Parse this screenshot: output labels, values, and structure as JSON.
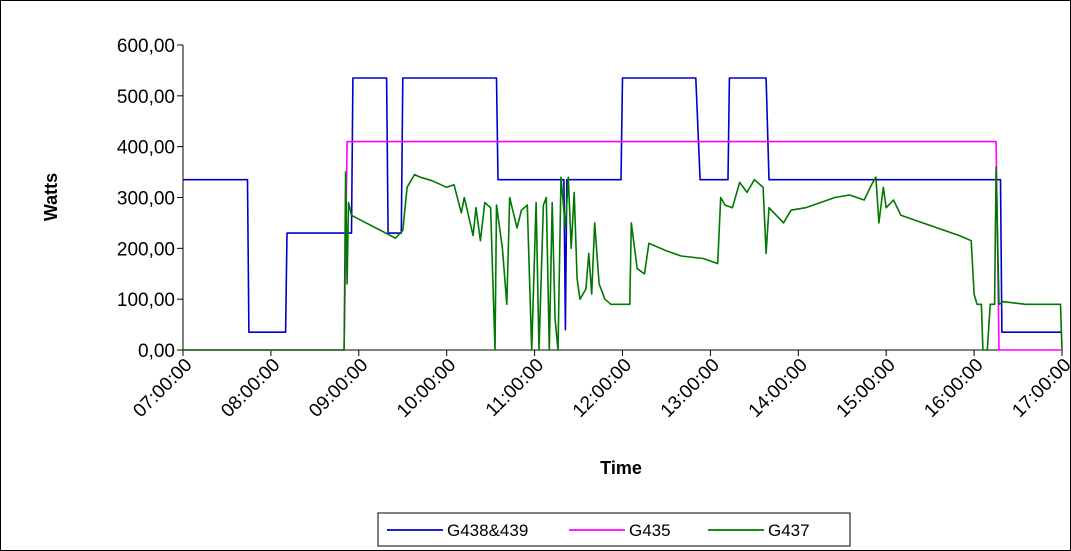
{
  "chart_data": {
    "type": "line",
    "title": "",
    "xlabel": "Time",
    "ylabel": "Watts",
    "x_ticks": [
      "07:00:00",
      "08:00:00",
      "09:00:00",
      "10:00:00",
      "11:00:00",
      "12:00:00",
      "13:00:00",
      "14:00:00",
      "15:00:00",
      "16:00:00",
      "17:00:00"
    ],
    "y_ticks": [
      "0,00",
      "100,00",
      "200,00",
      "300,00",
      "400,00",
      "500,00",
      "600,00"
    ],
    "xlim": [
      "07:00",
      "17:00"
    ],
    "ylim": [
      0,
      600
    ],
    "grid": false,
    "legend_position": "bottom",
    "series": [
      {
        "name": "G438&439",
        "color": "#0000cc",
        "points": [
          [
            "07:00",
            335
          ],
          [
            "07:44",
            335
          ],
          [
            "07:45",
            35
          ],
          [
            "08:10",
            35
          ],
          [
            "08:11",
            230
          ],
          [
            "08:55",
            230
          ],
          [
            "08:56",
            535
          ],
          [
            "09:19",
            535
          ],
          [
            "09:20",
            230
          ],
          [
            "09:29",
            230
          ],
          [
            "09:30",
            535
          ],
          [
            "10:34",
            535
          ],
          [
            "10:35",
            335
          ],
          [
            "11:20",
            335
          ],
          [
            "11:21",
            40
          ],
          [
            "11:22",
            335
          ],
          [
            "11:59",
            335
          ],
          [
            "12:00",
            535
          ],
          [
            "12:50",
            535
          ],
          [
            "12:53",
            335
          ],
          [
            "13:12",
            335
          ],
          [
            "13:13",
            535
          ],
          [
            "13:38",
            535
          ],
          [
            "13:40",
            335
          ],
          [
            "16:18",
            335
          ],
          [
            "16:19",
            35
          ],
          [
            "17:00",
            35
          ]
        ]
      },
      {
        "name": "G435",
        "color": "#ff00ff",
        "points": [
          [
            "07:00",
            0
          ],
          [
            "08:50",
            0
          ],
          [
            "08:52",
            410
          ],
          [
            "16:15",
            410
          ],
          [
            "16:17",
            0
          ],
          [
            "17:00",
            0
          ]
        ]
      },
      {
        "name": "G437",
        "color": "#007700",
        "points": [
          [
            "07:00",
            0
          ],
          [
            "08:50",
            0
          ],
          [
            "08:51",
            350
          ],
          [
            "08:52",
            130
          ],
          [
            "08:53",
            290
          ],
          [
            "08:55",
            265
          ],
          [
            "09:05",
            250
          ],
          [
            "09:15",
            235
          ],
          [
            "09:25",
            220
          ],
          [
            "09:30",
            235
          ],
          [
            "09:33",
            320
          ],
          [
            "09:38",
            345
          ],
          [
            "09:42",
            340
          ],
          [
            "09:50",
            333
          ],
          [
            "10:00",
            320
          ],
          [
            "10:05",
            325
          ],
          [
            "10:10",
            270
          ],
          [
            "10:12",
            300
          ],
          [
            "10:18",
            225
          ],
          [
            "10:20",
            280
          ],
          [
            "10:23",
            215
          ],
          [
            "10:26",
            290
          ],
          [
            "10:30",
            280
          ],
          [
            "10:33",
            0
          ],
          [
            "10:34",
            285
          ],
          [
            "10:38",
            200
          ],
          [
            "10:41",
            90
          ],
          [
            "10:43",
            300
          ],
          [
            "10:48",
            240
          ],
          [
            "10:51",
            275
          ],
          [
            "10:55",
            285
          ],
          [
            "10:58",
            0
          ],
          [
            "11:01",
            290
          ],
          [
            "11:03",
            0
          ],
          [
            "11:06",
            285
          ],
          [
            "11:08",
            300
          ],
          [
            "11:10",
            0
          ],
          [
            "11:12",
            290
          ],
          [
            "11:14",
            60
          ],
          [
            "11:16",
            0
          ],
          [
            "11:18",
            340
          ],
          [
            "11:21",
            240
          ],
          [
            "11:23",
            340
          ],
          [
            "11:25",
            200
          ],
          [
            "11:27",
            310
          ],
          [
            "11:29",
            140
          ],
          [
            "11:31",
            100
          ],
          [
            "11:35",
            120
          ],
          [
            "11:37",
            190
          ],
          [
            "11:39",
            110
          ],
          [
            "11:41",
            250
          ],
          [
            "11:44",
            130
          ],
          [
            "11:48",
            100
          ],
          [
            "11:52",
            90
          ],
          [
            "12:05",
            90
          ],
          [
            "12:06",
            250
          ],
          [
            "12:10",
            160
          ],
          [
            "12:15",
            150
          ],
          [
            "12:18",
            210
          ],
          [
            "12:30",
            195
          ],
          [
            "12:40",
            185
          ],
          [
            "12:55",
            180
          ],
          [
            "13:00",
            175
          ],
          [
            "13:05",
            170
          ],
          [
            "13:07",
            300
          ],
          [
            "13:10",
            285
          ],
          [
            "13:15",
            280
          ],
          [
            "13:20",
            330
          ],
          [
            "13:25",
            310
          ],
          [
            "13:30",
            335
          ],
          [
            "13:36",
            320
          ],
          [
            "13:38",
            190
          ],
          [
            "13:40",
            280
          ],
          [
            "13:50",
            250
          ],
          [
            "13:55",
            275
          ],
          [
            "14:05",
            280
          ],
          [
            "14:15",
            290
          ],
          [
            "14:25",
            300
          ],
          [
            "14:35",
            305
          ],
          [
            "14:45",
            295
          ],
          [
            "14:50",
            325
          ],
          [
            "14:53",
            340
          ],
          [
            "14:55",
            250
          ],
          [
            "14:58",
            320
          ],
          [
            "15:00",
            280
          ],
          [
            "15:05",
            295
          ],
          [
            "15:10",
            265
          ],
          [
            "15:20",
            255
          ],
          [
            "15:35",
            240
          ],
          [
            "15:50",
            225
          ],
          [
            "15:58",
            215
          ],
          [
            "16:00",
            110
          ],
          [
            "16:02",
            90
          ],
          [
            "16:05",
            90
          ],
          [
            "16:06",
            0
          ],
          [
            "16:09",
            0
          ],
          [
            "16:11",
            90
          ],
          [
            "16:14",
            90
          ],
          [
            "16:15",
            360
          ],
          [
            "16:17",
            90
          ],
          [
            "16:20",
            95
          ],
          [
            "16:35",
            90
          ],
          [
            "16:59",
            90
          ],
          [
            "17:00",
            0
          ]
        ]
      }
    ]
  }
}
